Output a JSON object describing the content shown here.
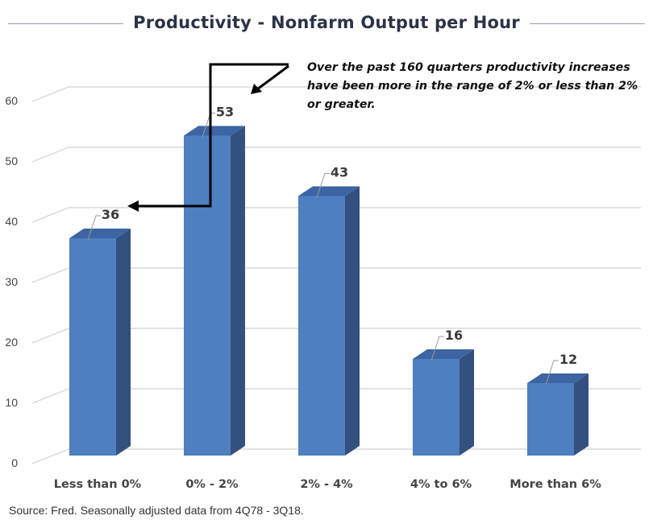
{
  "title": "Productivity - Nonfarm Output per Hour",
  "annotation": "Over the past 160 quarters productivity increases have been more in the range of 2% or less than 2% or greater.",
  "source": "Source: Fred. Seasonally adjusted data from 4Q78 - 3Q18.",
  "colors": {
    "bar_front": "#4e7fc0",
    "bar_side": "#34507e",
    "bar_top": "#3d65a3",
    "grid": "#d9d9d9",
    "title": "#2b3346"
  },
  "chart_data": {
    "type": "bar",
    "style": "3d-column",
    "title": "Productivity - Nonfarm Output per Hour",
    "categories": [
      "Less than 0%",
      "0% - 2%",
      "2% - 4%",
      "4% to 6%",
      "More than 6%"
    ],
    "values": [
      36,
      53,
      43,
      16,
      12
    ],
    "data_labels": [
      "36",
      "53",
      "43",
      "16",
      "12"
    ],
    "ylim": [
      0,
      60
    ],
    "yticks": [
      "0",
      "10",
      "20",
      "30",
      "40",
      "50",
      "60"
    ],
    "grid": true,
    "legend": "none"
  }
}
